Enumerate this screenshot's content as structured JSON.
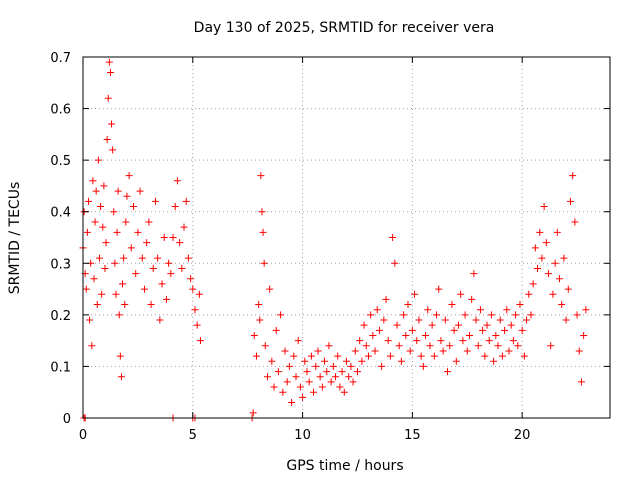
{
  "chart_data": {
    "type": "scatter",
    "title": "Day 130 of 2025, SRMTID for receiver vera",
    "xlabel": "GPS time / hours",
    "ylabel": "SRMTID / TECUs",
    "xlim": [
      0,
      24
    ],
    "ylim": [
      0,
      0.7
    ],
    "xticks": [
      0,
      5,
      10,
      15,
      20
    ],
    "xtick_labels": [
      "0",
      "5",
      "10",
      "15",
      "20"
    ],
    "yticks": [
      0,
      0.1,
      0.2,
      0.3,
      0.4,
      0.5,
      0.6,
      0.7
    ],
    "ytick_labels": [
      "0",
      "0.1",
      "0.2",
      "0.3",
      "0.4",
      "0.5",
      "0.6",
      "0.7"
    ],
    "grid": true,
    "marker": "+",
    "color": "#ff0000",
    "series": [
      {
        "name": "SRMTID",
        "points": [
          [
            0.0,
            0.33
          ],
          [
            0.05,
            0.4
          ],
          [
            0.1,
            0.28
          ],
          [
            0.15,
            0.25
          ],
          [
            0.2,
            0.36
          ],
          [
            0.25,
            0.42
          ],
          [
            0.3,
            0.19
          ],
          [
            0.35,
            0.3
          ],
          [
            0.4,
            0.14
          ],
          [
            0.45,
            0.46
          ],
          [
            0.5,
            0.27
          ],
          [
            0.55,
            0.38
          ],
          [
            0.6,
            0.44
          ],
          [
            0.65,
            0.22
          ],
          [
            0.7,
            0.5
          ],
          [
            0.75,
            0.31
          ],
          [
            0.8,
            0.41
          ],
          [
            0.85,
            0.24
          ],
          [
            0.9,
            0.37
          ],
          [
            0.95,
            0.45
          ],
          [
            1.0,
            0.29
          ],
          [
            1.05,
            0.34
          ],
          [
            1.1,
            0.54
          ],
          [
            1.15,
            0.62
          ],
          [
            1.2,
            0.69
          ],
          [
            1.25,
            0.67
          ],
          [
            1.3,
            0.57
          ],
          [
            1.35,
            0.52
          ],
          [
            1.4,
            0.4
          ],
          [
            1.45,
            0.3
          ],
          [
            1.5,
            0.24
          ],
          [
            1.55,
            0.36
          ],
          [
            1.6,
            0.44
          ],
          [
            1.65,
            0.2
          ],
          [
            1.7,
            0.12
          ],
          [
            1.75,
            0.08
          ],
          [
            1.8,
            0.26
          ],
          [
            1.85,
            0.31
          ],
          [
            1.9,
            0.22
          ],
          [
            1.95,
            0.38
          ],
          [
            2.0,
            0.43
          ],
          [
            2.1,
            0.47
          ],
          [
            2.2,
            0.33
          ],
          [
            2.3,
            0.41
          ],
          [
            2.4,
            0.28
          ],
          [
            2.5,
            0.36
          ],
          [
            2.6,
            0.44
          ],
          [
            2.7,
            0.31
          ],
          [
            2.8,
            0.25
          ],
          [
            2.9,
            0.34
          ],
          [
            3.0,
            0.38
          ],
          [
            3.1,
            0.22
          ],
          [
            3.2,
            0.29
          ],
          [
            3.3,
            0.42
          ],
          [
            3.4,
            0.31
          ],
          [
            3.5,
            0.19
          ],
          [
            3.6,
            0.26
          ],
          [
            3.7,
            0.35
          ],
          [
            3.8,
            0.23
          ],
          [
            3.9,
            0.3
          ],
          [
            4.0,
            0.28
          ],
          [
            4.1,
            0.35
          ],
          [
            4.2,
            0.41
          ],
          [
            4.3,
            0.46
          ],
          [
            4.4,
            0.34
          ],
          [
            4.5,
            0.29
          ],
          [
            4.6,
            0.37
          ],
          [
            4.7,
            0.42
          ],
          [
            4.8,
            0.31
          ],
          [
            4.9,
            0.27
          ],
          [
            5.0,
            0.25
          ],
          [
            5.1,
            0.21
          ],
          [
            5.2,
            0.18
          ],
          [
            5.3,
            0.24
          ],
          [
            5.35,
            0.15
          ],
          [
            0.05,
            0.0
          ],
          [
            0.1,
            0.0
          ],
          [
            4.1,
            0.0
          ],
          [
            5.0,
            0.0
          ],
          [
            5.1,
            0.0
          ],
          [
            7.7,
            0.0
          ],
          [
            7.75,
            0.01
          ],
          [
            7.8,
            0.16
          ],
          [
            7.9,
            0.12
          ],
          [
            8.0,
            0.22
          ],
          [
            8.05,
            0.19
          ],
          [
            8.1,
            0.47
          ],
          [
            8.15,
            0.4
          ],
          [
            8.2,
            0.36
          ],
          [
            8.25,
            0.3
          ],
          [
            8.3,
            0.14
          ],
          [
            8.4,
            0.08
          ],
          [
            8.5,
            0.25
          ],
          [
            8.6,
            0.11
          ],
          [
            8.7,
            0.06
          ],
          [
            8.8,
            0.17
          ],
          [
            8.9,
            0.09
          ],
          [
            9.0,
            0.2
          ],
          [
            9.1,
            0.05
          ],
          [
            9.2,
            0.13
          ],
          [
            9.3,
            0.07
          ],
          [
            9.4,
            0.1
          ],
          [
            9.5,
            0.03
          ],
          [
            9.6,
            0.12
          ],
          [
            9.7,
            0.08
          ],
          [
            9.8,
            0.15
          ],
          [
            9.9,
            0.06
          ],
          [
            10.0,
            0.04
          ],
          [
            10.1,
            0.11
          ],
          [
            10.2,
            0.09
          ],
          [
            10.3,
            0.07
          ],
          [
            10.4,
            0.12
          ],
          [
            10.5,
            0.05
          ],
          [
            10.6,
            0.1
          ],
          [
            10.7,
            0.13
          ],
          [
            10.8,
            0.08
          ],
          [
            10.9,
            0.06
          ],
          [
            11.0,
            0.11
          ],
          [
            11.1,
            0.09
          ],
          [
            11.2,
            0.14
          ],
          [
            11.3,
            0.07
          ],
          [
            11.4,
            0.1
          ],
          [
            11.5,
            0.08
          ],
          [
            11.6,
            0.12
          ],
          [
            11.7,
            0.06
          ],
          [
            11.8,
            0.09
          ],
          [
            11.9,
            0.05
          ],
          [
            12.0,
            0.11
          ],
          [
            12.1,
            0.08
          ],
          [
            12.2,
            0.1
          ],
          [
            12.3,
            0.07
          ],
          [
            12.4,
            0.13
          ],
          [
            12.5,
            0.09
          ],
          [
            12.6,
            0.15
          ],
          [
            12.7,
            0.11
          ],
          [
            12.8,
            0.18
          ],
          [
            12.9,
            0.14
          ],
          [
            13.0,
            0.12
          ],
          [
            13.1,
            0.2
          ],
          [
            13.2,
            0.16
          ],
          [
            13.3,
            0.13
          ],
          [
            13.4,
            0.21
          ],
          [
            13.5,
            0.17
          ],
          [
            13.6,
            0.1
          ],
          [
            13.7,
            0.19
          ],
          [
            13.8,
            0.23
          ],
          [
            13.9,
            0.15
          ],
          [
            14.0,
            0.12
          ],
          [
            14.1,
            0.35
          ],
          [
            14.2,
            0.3
          ],
          [
            14.3,
            0.18
          ],
          [
            14.4,
            0.14
          ],
          [
            14.5,
            0.11
          ],
          [
            14.6,
            0.2
          ],
          [
            14.7,
            0.16
          ],
          [
            14.8,
            0.22
          ],
          [
            14.9,
            0.13
          ],
          [
            15.0,
            0.17
          ],
          [
            15.1,
            0.24
          ],
          [
            15.2,
            0.15
          ],
          [
            15.3,
            0.19
          ],
          [
            15.4,
            0.12
          ],
          [
            15.5,
            0.1
          ],
          [
            15.6,
            0.16
          ],
          [
            15.7,
            0.21
          ],
          [
            15.8,
            0.14
          ],
          [
            15.9,
            0.18
          ],
          [
            16.0,
            0.12
          ],
          [
            16.1,
            0.2
          ],
          [
            16.2,
            0.25
          ],
          [
            16.3,
            0.15
          ],
          [
            16.4,
            0.13
          ],
          [
            16.5,
            0.19
          ],
          [
            16.6,
            0.09
          ],
          [
            16.7,
            0.14
          ],
          [
            16.8,
            0.22
          ],
          [
            16.9,
            0.17
          ],
          [
            17.0,
            0.11
          ],
          [
            17.1,
            0.18
          ],
          [
            17.2,
            0.24
          ],
          [
            17.3,
            0.15
          ],
          [
            17.4,
            0.2
          ],
          [
            17.5,
            0.13
          ],
          [
            17.6,
            0.16
          ],
          [
            17.7,
            0.23
          ],
          [
            17.8,
            0.28
          ],
          [
            17.9,
            0.19
          ],
          [
            18.0,
            0.14
          ],
          [
            18.1,
            0.21
          ],
          [
            18.2,
            0.17
          ],
          [
            18.3,
            0.12
          ],
          [
            18.4,
            0.18
          ],
          [
            18.5,
            0.15
          ],
          [
            18.6,
            0.2
          ],
          [
            18.7,
            0.11
          ],
          [
            18.8,
            0.16
          ],
          [
            18.9,
            0.14
          ],
          [
            19.0,
            0.19
          ],
          [
            19.1,
            0.12
          ],
          [
            19.2,
            0.17
          ],
          [
            19.3,
            0.21
          ],
          [
            19.4,
            0.13
          ],
          [
            19.5,
            0.18
          ],
          [
            19.6,
            0.15
          ],
          [
            19.7,
            0.2
          ],
          [
            19.8,
            0.14
          ],
          [
            19.9,
            0.22
          ],
          [
            20.0,
            0.17
          ],
          [
            20.1,
            0.12
          ],
          [
            20.2,
            0.19
          ],
          [
            20.3,
            0.24
          ],
          [
            20.4,
            0.2
          ],
          [
            20.5,
            0.26
          ],
          [
            20.6,
            0.33
          ],
          [
            20.7,
            0.29
          ],
          [
            20.8,
            0.36
          ],
          [
            20.9,
            0.31
          ],
          [
            21.0,
            0.41
          ],
          [
            21.1,
            0.34
          ],
          [
            21.2,
            0.28
          ],
          [
            21.3,
            0.14
          ],
          [
            21.4,
            0.24
          ],
          [
            21.5,
            0.3
          ],
          [
            21.6,
            0.36
          ],
          [
            21.7,
            0.27
          ],
          [
            21.8,
            0.22
          ],
          [
            21.9,
            0.31
          ],
          [
            22.0,
            0.19
          ],
          [
            22.1,
            0.25
          ],
          [
            22.2,
            0.42
          ],
          [
            22.3,
            0.47
          ],
          [
            22.4,
            0.38
          ],
          [
            22.5,
            0.2
          ],
          [
            22.6,
            0.13
          ],
          [
            22.7,
            0.07
          ],
          [
            22.8,
            0.16
          ],
          [
            22.9,
            0.21
          ]
        ]
      }
    ]
  }
}
